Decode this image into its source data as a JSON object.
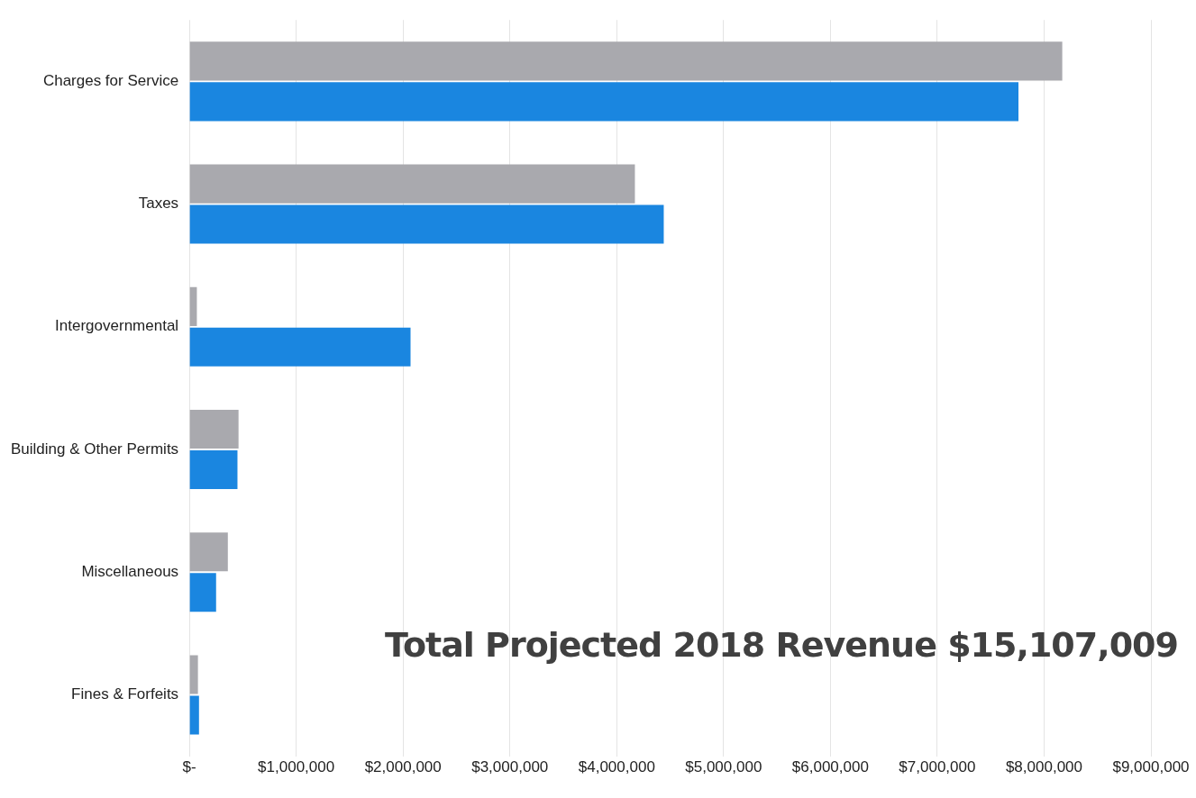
{
  "chart_data": {
    "type": "bar",
    "orientation": "horizontal",
    "categories": [
      "Charges for Service",
      "Taxes",
      "Intergovernmental",
      "Building & Other Permits",
      "Miscellaneous",
      "Fines & Forfeits"
    ],
    "series": [
      {
        "color": "#a9a9ae",
        "values": [
          8170000,
          4170000,
          70000,
          460000,
          360000,
          80000
        ]
      },
      {
        "color": "#1a86e0",
        "values": [
          7760000,
          4440000,
          2070000,
          450000,
          250000,
          90000
        ]
      }
    ],
    "xlim": [
      0,
      9000000
    ],
    "xticks": [
      {
        "value": 0,
        "label": "$-"
      },
      {
        "value": 1000000,
        "label": "$1,000,000"
      },
      {
        "value": 2000000,
        "label": "$2,000,000"
      },
      {
        "value": 3000000,
        "label": "$3,000,000"
      },
      {
        "value": 4000000,
        "label": "$4,000,000"
      },
      {
        "value": 5000000,
        "label": "$5,000,000"
      },
      {
        "value": 6000000,
        "label": "$6,000,000"
      },
      {
        "value": 7000000,
        "label": "$7,000,000"
      },
      {
        "value": 8000000,
        "label": "$8,000,000"
      },
      {
        "value": 9000000,
        "label": "$9,000,000"
      }
    ],
    "grid": "x",
    "legend": false,
    "annotations": [
      "Total Projected 2018 Revenue $15,107,009"
    ]
  }
}
